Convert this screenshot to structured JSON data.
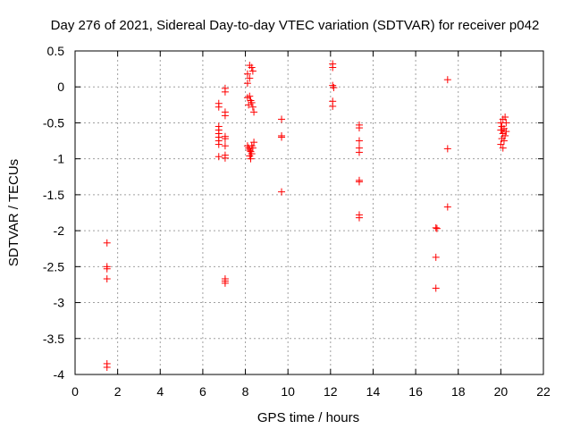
{
  "chart_data": {
    "type": "scatter",
    "title": "Day 276 of 2021, Sidereal Day-to-day VTEC variation (SDTVAR) for receiver p042",
    "xlabel": "GPS time / hours",
    "ylabel": "SDTVAR / TECUs",
    "xlim": [
      0,
      22
    ],
    "ylim": [
      -4,
      0.5
    ],
    "xticks": [
      0,
      2,
      4,
      6,
      8,
      10,
      12,
      14,
      16,
      18,
      20,
      22
    ],
    "yticks": [
      0.5,
      0,
      -0.5,
      -1,
      -1.5,
      -2,
      -2.5,
      -3,
      -3.5,
      -4
    ],
    "ytick_labels": [
      "0.5",
      "0",
      "-0.5",
      "-1",
      "-1.5",
      "-2",
      "-2.5",
      "-3",
      "-3.5",
      "-4"
    ],
    "grid": true,
    "marker": "+",
    "marker_color": "#ff0000",
    "series": [
      {
        "name": "SDTVAR",
        "points": [
          [
            1.5,
            -2.17
          ],
          [
            1.5,
            -2.5
          ],
          [
            1.5,
            -2.53
          ],
          [
            1.5,
            -2.67
          ],
          [
            1.5,
            -3.85
          ],
          [
            1.5,
            -3.9
          ],
          [
            6.75,
            -0.23
          ],
          [
            6.75,
            -0.28
          ],
          [
            6.75,
            -0.55
          ],
          [
            6.75,
            -0.6
          ],
          [
            6.75,
            -0.65
          ],
          [
            6.75,
            -0.7
          ],
          [
            6.75,
            -0.75
          ],
          [
            6.75,
            -0.8
          ],
          [
            6.75,
            -0.97
          ],
          [
            7.05,
            -0.02
          ],
          [
            7.05,
            -0.07
          ],
          [
            7.05,
            -0.35
          ],
          [
            7.05,
            -0.4
          ],
          [
            7.05,
            -0.69
          ],
          [
            7.05,
            -0.72
          ],
          [
            7.05,
            -0.82
          ],
          [
            7.05,
            -0.95
          ],
          [
            7.05,
            -0.99
          ],
          [
            7.05,
            -2.67
          ],
          [
            7.05,
            -2.7
          ],
          [
            7.05,
            -2.73
          ],
          [
            8.1,
            0.05
          ],
          [
            8.1,
            0.18
          ],
          [
            8.2,
            0.3
          ],
          [
            8.3,
            0.27
          ],
          [
            8.35,
            0.22
          ],
          [
            8.2,
            0.12
          ],
          [
            8.1,
            -0.15
          ],
          [
            8.2,
            -0.13
          ],
          [
            8.25,
            -0.19
          ],
          [
            8.3,
            -0.22
          ],
          [
            8.35,
            -0.28
          ],
          [
            8.4,
            -0.35
          ],
          [
            8.15,
            -0.25
          ],
          [
            8.1,
            -0.82
          ],
          [
            8.15,
            -0.85
          ],
          [
            8.2,
            -0.88
          ],
          [
            8.25,
            -0.9
          ],
          [
            8.3,
            -0.93
          ],
          [
            8.2,
            -0.96
          ],
          [
            8.25,
            -1.0
          ],
          [
            8.4,
            -0.77
          ],
          [
            8.35,
            -0.85
          ],
          [
            8.3,
            -0.82
          ],
          [
            9.7,
            -0.45
          ],
          [
            9.7,
            -0.68
          ],
          [
            9.7,
            -0.7
          ],
          [
            9.7,
            -1.46
          ],
          [
            12.1,
            0.32
          ],
          [
            12.1,
            0.27
          ],
          [
            12.1,
            0.02
          ],
          [
            12.15,
            -0.01
          ],
          [
            12.1,
            -0.2
          ],
          [
            12.1,
            -0.27
          ],
          [
            13.35,
            -0.53
          ],
          [
            13.35,
            -0.57
          ],
          [
            13.35,
            -0.75
          ],
          [
            13.35,
            -0.85
          ],
          [
            13.35,
            -0.91
          ],
          [
            13.35,
            -1.3
          ],
          [
            13.35,
            -1.32
          ],
          [
            13.35,
            -1.78
          ],
          [
            13.35,
            -1.82
          ],
          [
            16.95,
            -1.96
          ],
          [
            17.0,
            -1.97
          ],
          [
            16.95,
            -2.37
          ],
          [
            16.95,
            -2.8
          ],
          [
            17.5,
            0.1
          ],
          [
            17.5,
            -0.86
          ],
          [
            17.5,
            -1.67
          ],
          [
            20.0,
            -0.5
          ],
          [
            20.05,
            -0.55
          ],
          [
            20.1,
            -0.45
          ],
          [
            20.2,
            -0.42
          ],
          [
            20.25,
            -0.5
          ],
          [
            20.15,
            -0.58
          ],
          [
            20.0,
            -0.6
          ],
          [
            20.1,
            -0.65
          ],
          [
            20.2,
            -0.68
          ],
          [
            20.05,
            -0.72
          ],
          [
            20.15,
            -0.75
          ],
          [
            20.0,
            -0.8
          ],
          [
            20.1,
            -0.85
          ],
          [
            20.25,
            -0.62
          ],
          [
            20.05,
            -0.6
          ]
        ]
      }
    ]
  }
}
